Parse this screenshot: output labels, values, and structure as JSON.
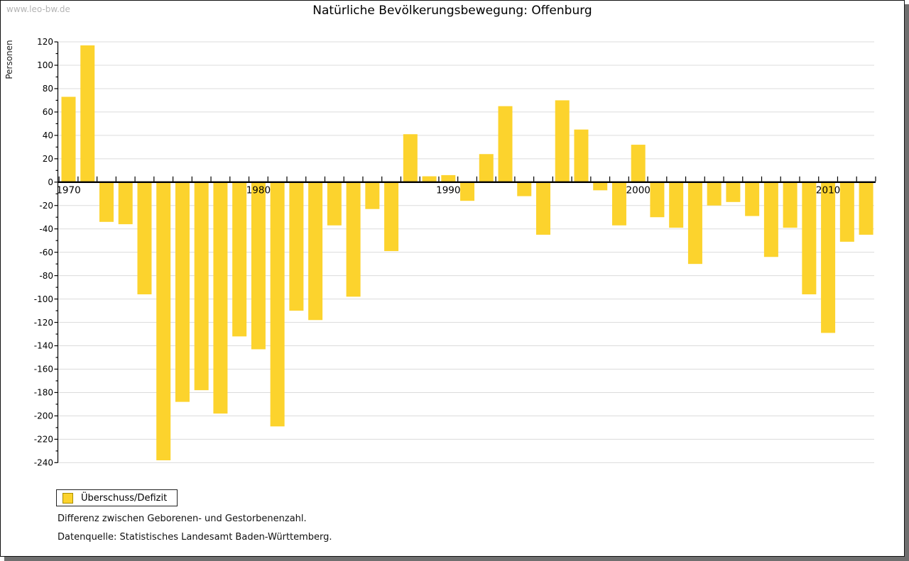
{
  "watermark": "www.leo-bw.de",
  "legend": {
    "label": "Überschuss/Defizit"
  },
  "footnotes": [
    "Differenz zwischen Geborenen- und Gestorbenenzahl.",
    "Datenquelle: Statistisches Landesamt Baden-Württemberg."
  ],
  "chart_data": {
    "type": "bar",
    "title": "Natürliche Bevölkerungsbewegung: Offenburg",
    "ylabel": "Personen",
    "series_name": "Überschuss/Defizit",
    "years": [
      1970,
      1971,
      1972,
      1973,
      1974,
      1975,
      1976,
      1977,
      1978,
      1979,
      1980,
      1981,
      1982,
      1983,
      1984,
      1985,
      1986,
      1987,
      1988,
      1989,
      1990,
      1991,
      1992,
      1993,
      1994,
      1995,
      1996,
      1997,
      1998,
      1999,
      2000,
      2001,
      2002,
      2003,
      2004,
      2005,
      2006,
      2007,
      2008,
      2009,
      2010,
      2011,
      2012
    ],
    "values": [
      73,
      117,
      -34,
      -36,
      -96,
      -238,
      -188,
      -178,
      -198,
      -132,
      -143,
      -209,
      -110,
      -118,
      -37,
      -98,
      -23,
      -59,
      41,
      5,
      6,
      -16,
      24,
      65,
      -12,
      -45,
      70,
      45,
      -7,
      -37,
      32,
      -30,
      -39,
      -70,
      -20,
      -17,
      -29,
      -64,
      -39,
      -96,
      -129,
      -51,
      -45
    ],
    "ylim": [
      -240,
      120
    ],
    "ytick_step": 20,
    "yminor_step": 10,
    "xticks": [
      1970,
      1980,
      1990,
      2000,
      2010
    ],
    "grid": true,
    "legend_position": "bottom-left",
    "bar_color": "#FCD32D",
    "legend_swatch_border": "#A98E00",
    "grid_color": "#DCDCDC",
    "axis_color": "#000000",
    "shadow_color": "#6F6F6F"
  }
}
